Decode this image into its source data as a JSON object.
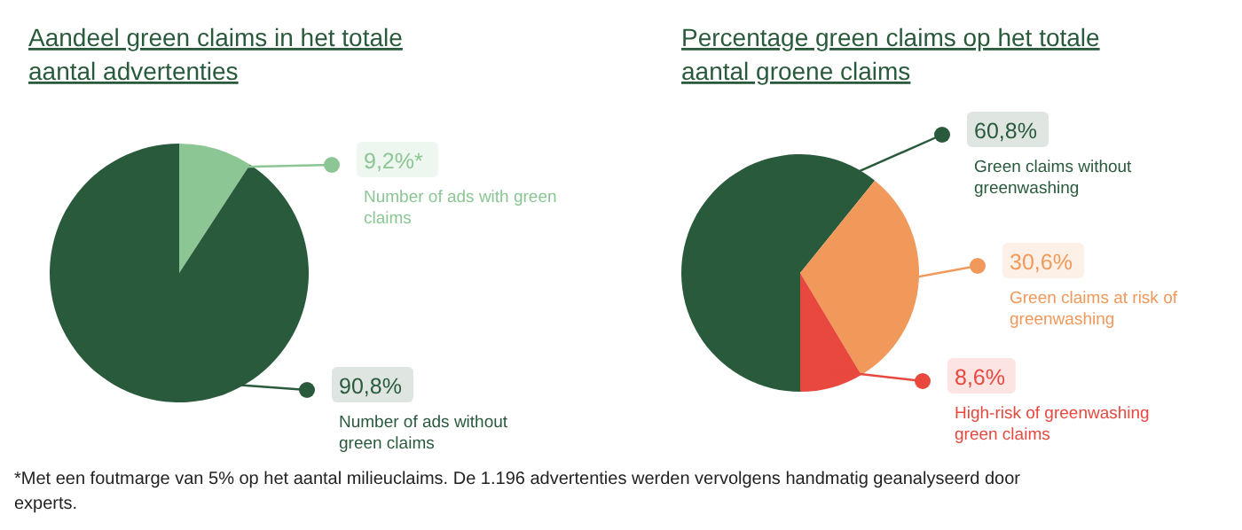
{
  "chart_data": [
    {
      "type": "pie",
      "title": "Aandeel green claims in het totale aantal advertenties",
      "categories": [
        "Number of ads with green claims",
        "Number of ads without green claims"
      ],
      "values": [
        9.2,
        90.8
      ],
      "colors": [
        "#8cc694",
        "#2a5a3c"
      ],
      "value_labels": [
        "9,2%*",
        "90,8%"
      ],
      "legend": "right",
      "annotations": [
        "*Met een foutmarge van 5% op het aantal milieuclaims. De 1.196 advertenties werden vervolgens handmatig geanalyseerd door experts."
      ]
    },
    {
      "type": "pie",
      "title": "Percentage green claims op het totale aantal groene claims",
      "categories": [
        "Green claims without greenwashing",
        "Green claims at risk of greenwashing",
        "High-risk of greenwashing green claims"
      ],
      "values": [
        60.8,
        30.6,
        8.6
      ],
      "colors": [
        "#2a5a3c",
        "#f0995a",
        "#e8483e"
      ],
      "value_labels": [
        "60,8%",
        "30,6%",
        "8,6%"
      ],
      "legend": "right"
    }
  ]
}
